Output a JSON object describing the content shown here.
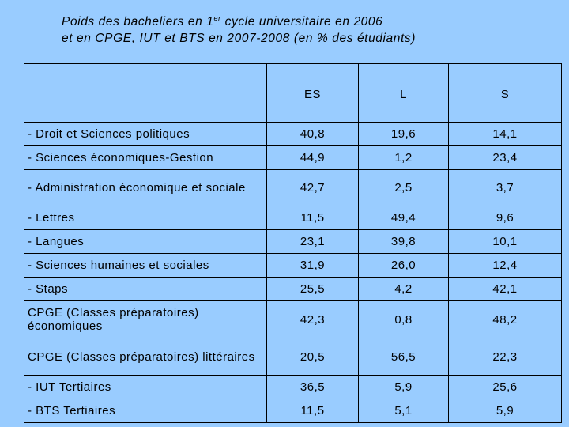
{
  "title": {
    "line1_a": "Poids des bacheliers en 1",
    "line1_sup": "er",
    "line1_b": " cycle universitaire en 2006",
    "line2": "et en CPGE, IUT et BTS en 2007-2008 (en % des étudiants)"
  },
  "table": {
    "columns": [
      "",
      "ES",
      "L",
      "S"
    ],
    "rows": [
      {
        "label": "- Droit et Sciences politiques",
        "es": "40,8",
        "l": "19,6",
        "s": "14,1"
      },
      {
        "label": "- Sciences économiques-Gestion",
        "es": "44,9",
        "l": "1,2",
        "s": "23,4"
      },
      {
        "label": "- Administration économique et sociale",
        "es": "42,7",
        "l": "2,5",
        "s": "3,7"
      },
      {
        "label": "- Lettres",
        "es": "11,5",
        "l": "49,4",
        "s": "9,6"
      },
      {
        "label": "- Langues",
        "es": "23,1",
        "l": "39,8",
        "s": "10,1"
      },
      {
        "label": "- Sciences humaines et sociales",
        "es": "31,9",
        "l": "26,0",
        "s": "12,4"
      },
      {
        "label": "- Staps",
        "es": "25,5",
        "l": "4,2",
        "s": "42,1"
      },
      {
        "label": "CPGE (Classes préparatoires) économiques",
        "es": "42,3",
        "l": "0,8",
        "s": "48,2"
      },
      {
        "label": "CPGE (Classes préparatoires) littéraires",
        "es": "20,5",
        "l": "56,5",
        "s": "22,3"
      },
      {
        "label": "- IUT Tertiaires",
        "es": "36,5",
        "l": "5,9",
        "s": "25,6"
      },
      {
        "label": "- BTS Tertiaires",
        "es": "11,5",
        "l": "5,1",
        "s": "5,9"
      }
    ]
  }
}
